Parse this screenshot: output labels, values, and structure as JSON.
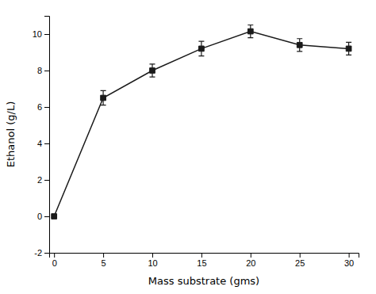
{
  "chart_data": {
    "type": "line",
    "x": [
      0,
      5,
      10,
      15,
      20,
      25,
      30
    ],
    "values": [
      0.0,
      6.5,
      8.0,
      9.2,
      10.15,
      9.4,
      9.2
    ],
    "errors": [
      0.05,
      0.4,
      0.35,
      0.4,
      0.35,
      0.35,
      0.35
    ],
    "color": "#1a1a1a",
    "marker": "square",
    "line_style": "solid",
    "xlabel": "Mass substrate (gms)",
    "ylabel": "Ethanol (g/L)",
    "xlim": [
      -0.5,
      31
    ],
    "ylim": [
      -2,
      11
    ],
    "xticks": [
      0,
      5,
      10,
      15,
      20,
      25,
      30
    ],
    "yticks": [
      -2,
      0,
      2,
      4,
      6,
      8,
      10
    ]
  }
}
